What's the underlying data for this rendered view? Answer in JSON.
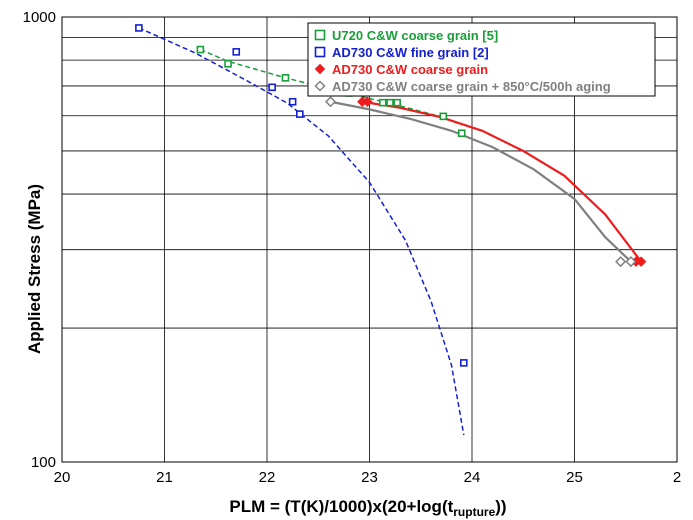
{
  "chart_data": {
    "type": "scatter",
    "title": "",
    "xlabel": "PLM = (T(K)/1000)x(20+log(t",
    "xlabel_sub": "rupture",
    "xlabel_end": "))",
    "ylabel": "Applied Stress (MPa)",
    "xlim": [
      20,
      26
    ],
    "ylim": [
      100,
      1000
    ],
    "yscale": "log",
    "grid": true,
    "legend_position": "top-right",
    "x_tick_labels": [
      "20",
      "21",
      "22",
      "23",
      "24",
      "25",
      "2"
    ],
    "y_tick_labels": [
      "1000",
      "100"
    ],
    "series": [
      {
        "name": "U720 C&W coarse grain [5]",
        "color": "#1a9e3a",
        "marker": "open-square",
        "points": [
          [
            21.35,
            845
          ],
          [
            21.62,
            785
          ],
          [
            22.18,
            730
          ],
          [
            22.8,
            675
          ],
          [
            23.13,
            642
          ],
          [
            23.2,
            642
          ],
          [
            23.27,
            642
          ],
          [
            23.72,
            598
          ],
          [
            23.9,
            548
          ]
        ],
        "trend": [
          [
            21.35,
            845
          ],
          [
            21.62,
            795
          ],
          [
            22.18,
            730
          ],
          [
            22.8,
            672
          ],
          [
            23.2,
            640
          ],
          [
            23.72,
            595
          ],
          [
            23.9,
            572
          ]
        ]
      },
      {
        "name": "AD730  C&W fine grain [2]",
        "color": "#1420d0",
        "marker": "open-square",
        "points": [
          [
            20.75,
            945
          ],
          [
            21.7,
            835
          ],
          [
            22.05,
            695
          ],
          [
            22.25,
            645
          ],
          [
            22.32,
            605
          ],
          [
            23.92,
            167
          ]
        ],
        "trend": [
          [
            20.75,
            945
          ],
          [
            21.3,
            830
          ],
          [
            21.8,
            720
          ],
          [
            22.2,
            640
          ],
          [
            22.6,
            540
          ],
          [
            23.0,
            425
          ],
          [
            23.35,
            315
          ],
          [
            23.6,
            230
          ],
          [
            23.8,
            165
          ],
          [
            23.92,
            115
          ]
        ]
      },
      {
        "name": "AD730  C&W coarse grain",
        "color": "#ee1c1c",
        "marker": "filled-diamond",
        "points": [
          [
            22.93,
            645
          ],
          [
            22.98,
            645
          ],
          [
            25.6,
            282
          ],
          [
            25.65,
            282
          ]
        ],
        "trend": [
          [
            22.93,
            645
          ],
          [
            23.3,
            625
          ],
          [
            23.7,
            595
          ],
          [
            24.1,
            555
          ],
          [
            24.5,
            500
          ],
          [
            24.9,
            440
          ],
          [
            25.3,
            360
          ],
          [
            25.65,
            282
          ]
        ]
      },
      {
        "name": "AD730  C&W coarse grain + 850°C/500h aging",
        "color": "#808080",
        "marker": "open-diamond",
        "points": [
          [
            22.62,
            645
          ],
          [
            25.45,
            282
          ],
          [
            25.55,
            282
          ]
        ],
        "trend": [
          [
            22.62,
            645
          ],
          [
            23.0,
            620
          ],
          [
            23.4,
            590
          ],
          [
            23.8,
            555
          ],
          [
            24.2,
            510
          ],
          [
            24.6,
            455
          ],
          [
            25.0,
            390
          ],
          [
            25.3,
            320
          ],
          [
            25.55,
            282
          ]
        ]
      }
    ]
  }
}
